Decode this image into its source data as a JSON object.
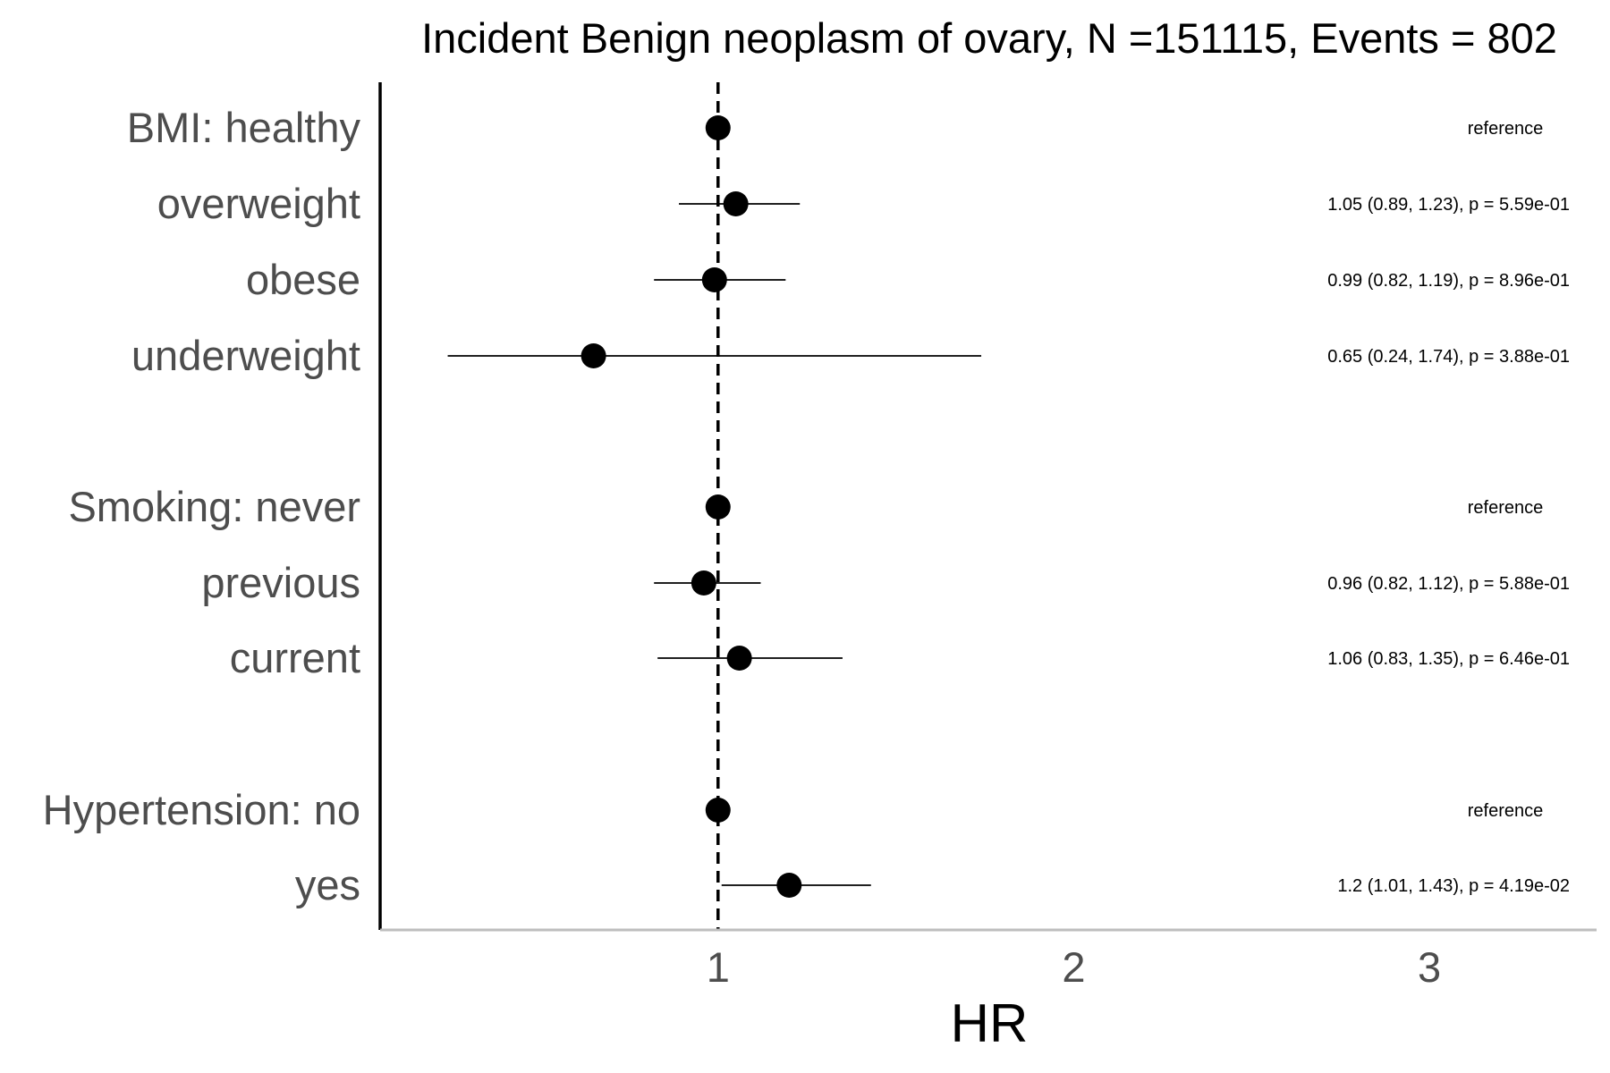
{
  "chart_data": {
    "type": "forest",
    "title": "Incident Benign neoplasm of ovary, N =151115, Events = 802",
    "xlabel": "HR",
    "x_ticks": [
      1,
      2,
      3
    ],
    "xlim": [
      0.05,
      3.47
    ],
    "reference_line": 1,
    "grid": false,
    "rows": [
      {
        "label": "BMI: healthy",
        "hr": 1.0,
        "low": null,
        "high": null,
        "annotation": "reference"
      },
      {
        "label": "overweight",
        "hr": 1.05,
        "low": 0.89,
        "high": 1.23,
        "annotation": "1.05 (0.89, 1.23), p = 5.59e-01"
      },
      {
        "label": "obese",
        "hr": 0.99,
        "low": 0.82,
        "high": 1.19,
        "annotation": "0.99 (0.82, 1.19), p = 8.96e-01"
      },
      {
        "label": "underweight",
        "hr": 0.65,
        "low": 0.24,
        "high": 1.74,
        "annotation": "0.65 (0.24, 1.74), p = 3.88e-01"
      },
      {
        "label": "Smoking: never",
        "hr": 1.0,
        "low": null,
        "high": null,
        "annotation": "reference"
      },
      {
        "label": "previous",
        "hr": 0.96,
        "low": 0.82,
        "high": 1.12,
        "annotation": "0.96 (0.82, 1.12), p = 5.88e-01"
      },
      {
        "label": "current",
        "hr": 1.06,
        "low": 0.83,
        "high": 1.35,
        "annotation": "1.06 (0.83, 1.35), p = 6.46e-01"
      },
      {
        "label": "Hypertension: no",
        "hr": 1.0,
        "low": null,
        "high": null,
        "annotation": "reference"
      },
      {
        "label": "yes",
        "hr": 1.2,
        "low": 1.01,
        "high": 1.43,
        "annotation": "1.2 (1.01, 1.43), p = 4.19e-02"
      }
    ]
  }
}
